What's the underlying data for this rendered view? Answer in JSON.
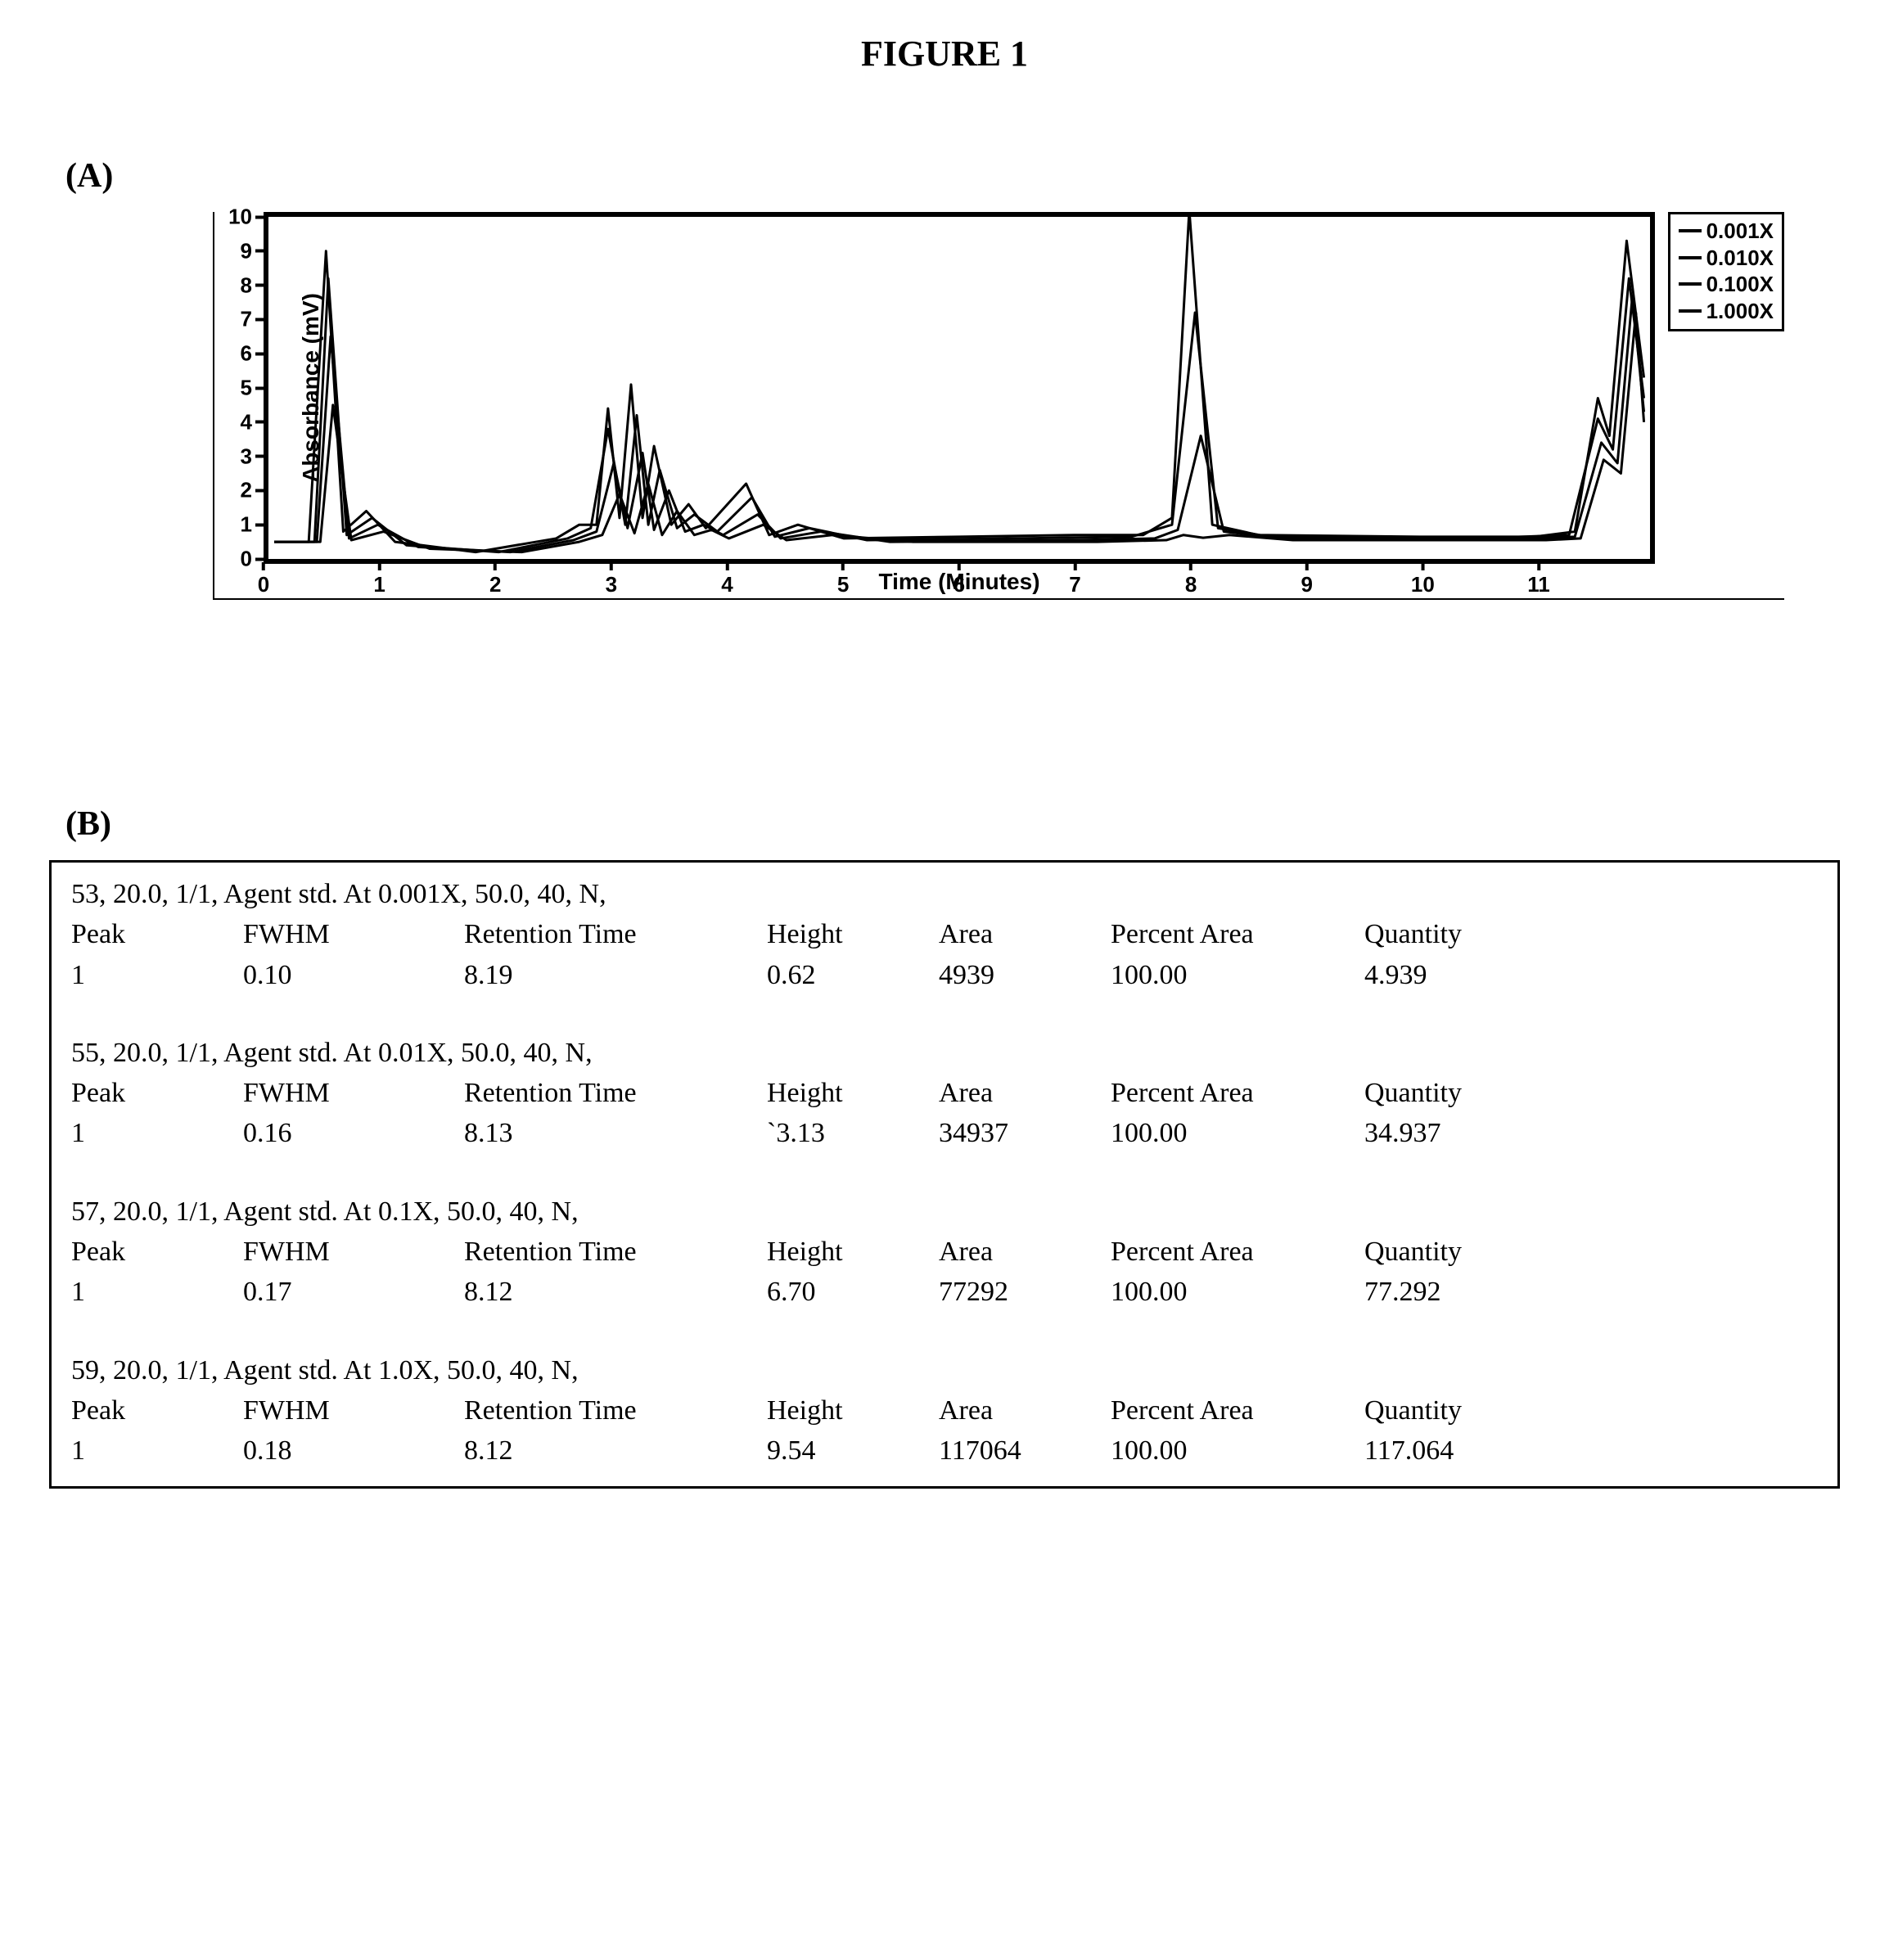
{
  "figure_title": "FIGURE 1",
  "panel_a_label": "(A)",
  "panel_b_label": "(B)",
  "chart": {
    "type": "line",
    "y_label": "Absorbance (mV)",
    "x_label": "Time (Minutes)",
    "xlim": [
      0,
      12
    ],
    "ylim": [
      0,
      10
    ],
    "x_ticks": [
      "0",
      "1",
      "2",
      "3",
      "4",
      "5",
      "6",
      "7",
      "8",
      "9",
      "10",
      "11"
    ],
    "y_ticks": [
      "0",
      "1",
      "2",
      "3",
      "4",
      "5",
      "6",
      "7",
      "8",
      "9",
      "10"
    ],
    "line_color": "#000000",
    "line_width": 3,
    "border_color": "#000000",
    "border_width": 6,
    "background_color": "#ffffff",
    "tick_fontsize": 26,
    "label_fontsize": 28,
    "legend_fontsize": 26,
    "legend_border": "#000000",
    "legend_items": [
      "0.001X",
      "0.010X",
      "0.100X",
      "1.000X"
    ],
    "series": {
      "s1": [
        [
          0.05,
          0.5
        ],
        [
          0.35,
          0.5
        ],
        [
          0.5,
          9.0
        ],
        [
          0.65,
          0.8
        ],
        [
          0.85,
          1.4
        ],
        [
          1.1,
          0.5
        ],
        [
          1.8,
          0.2
        ],
        [
          2.5,
          0.6
        ],
        [
          2.7,
          1.0
        ],
        [
          2.85,
          1.0
        ],
        [
          2.95,
          4.4
        ],
        [
          3.05,
          1.2
        ],
        [
          3.15,
          5.1
        ],
        [
          3.25,
          1.2
        ],
        [
          3.35,
          3.3
        ],
        [
          3.5,
          1.0
        ],
        [
          3.65,
          1.6
        ],
        [
          3.8,
          0.9
        ],
        [
          4.15,
          2.2
        ],
        [
          4.35,
          0.7
        ],
        [
          4.6,
          1.0
        ],
        [
          5.0,
          0.6
        ],
        [
          6.0,
          0.65
        ],
        [
          7.0,
          0.7
        ],
        [
          7.6,
          0.7
        ],
        [
          7.85,
          1.2
        ],
        [
          8.0,
          10.2
        ],
        [
          8.2,
          1.0
        ],
        [
          8.6,
          0.7
        ],
        [
          10.0,
          0.65
        ],
        [
          11.0,
          0.65
        ],
        [
          11.35,
          0.8
        ],
        [
          11.55,
          4.7
        ],
        [
          11.65,
          3.6
        ],
        [
          11.8,
          9.3
        ],
        [
          11.95,
          5.3
        ]
      ],
      "s2": [
        [
          0.05,
          0.5
        ],
        [
          0.4,
          0.5
        ],
        [
          0.52,
          8.2
        ],
        [
          0.68,
          0.7
        ],
        [
          0.9,
          1.2
        ],
        [
          1.2,
          0.4
        ],
        [
          2.0,
          0.2
        ],
        [
          2.6,
          0.6
        ],
        [
          2.8,
          0.9
        ],
        [
          2.95,
          3.8
        ],
        [
          3.1,
          1.0
        ],
        [
          3.2,
          4.2
        ],
        [
          3.3,
          1.0
        ],
        [
          3.4,
          2.6
        ],
        [
          3.55,
          0.9
        ],
        [
          3.7,
          1.3
        ],
        [
          3.9,
          0.8
        ],
        [
          4.2,
          1.8
        ],
        [
          4.4,
          0.65
        ],
        [
          4.7,
          0.9
        ],
        [
          5.2,
          0.55
        ],
        [
          6.5,
          0.6
        ],
        [
          7.5,
          0.65
        ],
        [
          7.85,
          1.0
        ],
        [
          8.05,
          7.2
        ],
        [
          8.25,
          0.9
        ],
        [
          8.7,
          0.65
        ],
        [
          10.5,
          0.6
        ],
        [
          11.3,
          0.7
        ],
        [
          11.55,
          4.1
        ],
        [
          11.68,
          3.2
        ],
        [
          11.82,
          8.2
        ],
        [
          11.95,
          4.7
        ]
      ],
      "s3": [
        [
          0.05,
          0.5
        ],
        [
          0.42,
          0.5
        ],
        [
          0.54,
          6.5
        ],
        [
          0.7,
          0.6
        ],
        [
          0.95,
          1.0
        ],
        [
          1.3,
          0.35
        ],
        [
          2.1,
          0.2
        ],
        [
          2.65,
          0.55
        ],
        [
          2.85,
          0.8
        ],
        [
          3.0,
          2.8
        ],
        [
          3.12,
          0.9
        ],
        [
          3.25,
          3.1
        ],
        [
          3.35,
          0.85
        ],
        [
          3.48,
          2.0
        ],
        [
          3.62,
          0.8
        ],
        [
          3.78,
          1.0
        ],
        [
          3.95,
          0.7
        ],
        [
          4.25,
          1.3
        ],
        [
          4.45,
          0.6
        ],
        [
          4.8,
          0.8
        ],
        [
          5.4,
          0.5
        ],
        [
          7.0,
          0.55
        ],
        [
          7.7,
          0.6
        ],
        [
          7.9,
          0.85
        ],
        [
          8.1,
          3.6
        ],
        [
          8.3,
          0.8
        ],
        [
          8.8,
          0.6
        ],
        [
          11.0,
          0.6
        ],
        [
          11.35,
          0.65
        ],
        [
          11.58,
          3.4
        ],
        [
          11.72,
          2.8
        ],
        [
          11.85,
          7.7
        ],
        [
          11.95,
          4.3
        ]
      ],
      "s4": [
        [
          0.05,
          0.5
        ],
        [
          0.45,
          0.5
        ],
        [
          0.56,
          4.5
        ],
        [
          0.72,
          0.55
        ],
        [
          1.0,
          0.8
        ],
        [
          1.4,
          0.3
        ],
        [
          2.2,
          0.2
        ],
        [
          2.7,
          0.5
        ],
        [
          2.9,
          0.7
        ],
        [
          3.05,
          1.9
        ],
        [
          3.18,
          0.75
        ],
        [
          3.3,
          2.2
        ],
        [
          3.42,
          0.7
        ],
        [
          3.55,
          1.4
        ],
        [
          3.7,
          0.7
        ],
        [
          3.85,
          0.85
        ],
        [
          4.0,
          0.6
        ],
        [
          4.3,
          1.0
        ],
        [
          4.5,
          0.55
        ],
        [
          4.9,
          0.7
        ],
        [
          5.6,
          0.5
        ],
        [
          7.2,
          0.5
        ],
        [
          7.8,
          0.55
        ],
        [
          7.95,
          0.7
        ],
        [
          8.12,
          0.62
        ],
        [
          8.35,
          0.7
        ],
        [
          8.9,
          0.55
        ],
        [
          11.1,
          0.55
        ],
        [
          11.4,
          0.6
        ],
        [
          11.6,
          2.9
        ],
        [
          11.75,
          2.5
        ],
        [
          11.88,
          7.2
        ],
        [
          11.95,
          4.0
        ]
      ]
    }
  },
  "tables": {
    "columns": [
      "Peak",
      "FWHM",
      "Retention Time",
      "Height",
      "Area",
      "Percent Area",
      "Quantity"
    ],
    "sections": [
      {
        "title": "53,  20.0,  1/1,  Agent std. At 0.001X,   50.0,  40,  N,",
        "row": [
          "1",
          "0.10",
          "8.19",
          "0.62",
          "4939",
          "100.00",
          "4.939"
        ]
      },
      {
        "title": "55,  20.0,  1/1,  Agent std. At 0.01X,   50.0,  40,  N,",
        "row": [
          "1",
          "0.16",
          "8.13",
          "`3.13",
          "34937",
          "100.00",
          "34.937"
        ]
      },
      {
        "title": "57,  20.0,  1/1,  Agent std. At 0.1X,   50.0,  40,  N,",
        "row": [
          "1",
          "0.17",
          "8.12",
          "6.70",
          "77292",
          "100.00",
          "77.292"
        ]
      },
      {
        "title": "59,  20.0,  1/1,  Agent std. At 1.0X,   50.0,  40,  N,",
        "row": [
          "1",
          "0.18",
          "8.12",
          "9.54",
          "117064",
          "100.00",
          "117.064"
        ]
      }
    ]
  }
}
